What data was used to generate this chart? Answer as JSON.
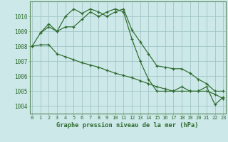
{
  "line1_x": [
    0,
    1,
    2,
    3,
    4,
    5,
    6,
    7,
    8,
    9,
    10,
    11,
    12,
    13,
    14,
    15,
    16,
    17,
    18,
    19,
    20,
    21,
    22,
    23
  ],
  "line1_y": [
    1008.0,
    1008.9,
    1009.3,
    1009.0,
    1010.0,
    1010.5,
    1010.2,
    1010.5,
    1010.3,
    1010.0,
    1010.3,
    1010.5,
    1009.1,
    1008.3,
    1007.5,
    1006.7,
    1006.6,
    1006.5,
    1006.5,
    1006.2,
    1005.8,
    1005.5,
    1005.0,
    1005.0
  ],
  "line2_x": [
    1,
    2,
    3,
    4,
    5,
    6,
    7,
    8,
    9,
    10,
    11,
    12,
    13,
    14,
    15,
    16,
    17,
    18,
    19,
    20,
    21,
    22,
    23
  ],
  "line2_y": [
    1008.9,
    1009.5,
    1009.0,
    1009.3,
    1009.3,
    1009.8,
    1010.3,
    1010.0,
    1010.3,
    1010.5,
    1010.3,
    1008.5,
    1007.0,
    1005.8,
    1005.0,
    1005.0,
    1005.0,
    1005.3,
    1005.0,
    1005.0,
    1005.3,
    1004.1,
    1004.6
  ],
  "line3_x": [
    0,
    1,
    2,
    3,
    4,
    5,
    6,
    7,
    8,
    9,
    10,
    11,
    12,
    13,
    14,
    15,
    16,
    17,
    18,
    19,
    20,
    21,
    22,
    23
  ],
  "line3_y": [
    1008.0,
    1008.1,
    1008.1,
    1007.5,
    1007.3,
    1007.1,
    1006.9,
    1006.75,
    1006.6,
    1006.4,
    1006.2,
    1006.05,
    1005.9,
    1005.7,
    1005.5,
    1005.3,
    1005.15,
    1005.0,
    1005.0,
    1005.0,
    1005.0,
    1005.0,
    1004.8,
    1004.5
  ],
  "line_color": "#2d6a2d",
  "bg_color": "#cce8e8",
  "grid_color": "#9bbfbf",
  "xlabel": "Graphe pression niveau de la mer (hPa)",
  "ylim": [
    1003.5,
    1011.0
  ],
  "xlim": [
    -0.3,
    23.3
  ],
  "yticks": [
    1004,
    1005,
    1006,
    1007,
    1008,
    1009,
    1010
  ],
  "xticks": [
    0,
    1,
    2,
    3,
    4,
    5,
    6,
    7,
    8,
    9,
    10,
    11,
    12,
    13,
    14,
    15,
    16,
    17,
    18,
    19,
    20,
    21,
    22,
    23
  ],
  "tick_fontsize": 5.0,
  "ylabel_fontsize": 5.5,
  "xlabel_fontsize": 6.2
}
